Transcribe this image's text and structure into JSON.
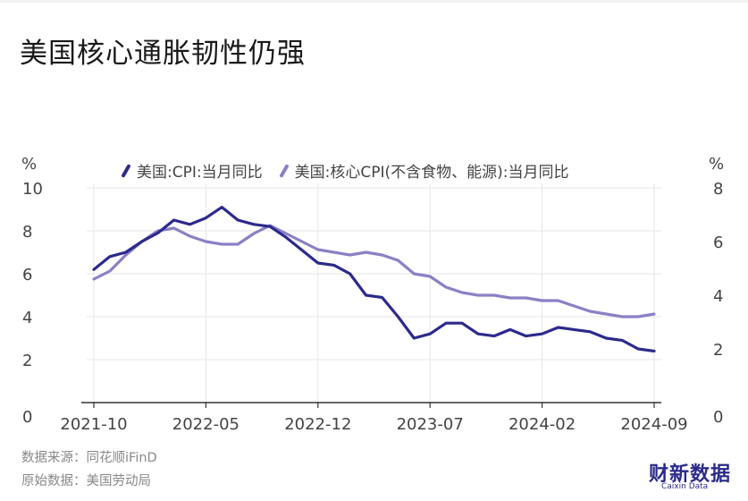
{
  "title": "美国核心通胀韧性仍强",
  "unit_left": "%",
  "unit_right": "%",
  "footer": {
    "source": "数据来源：同花顺iFinD",
    "original": "原始数据：美国劳动局"
  },
  "brand": {
    "name": "财新数据",
    "sub": "Caixin Data"
  },
  "colors": {
    "cpi": "#2d2a8c",
    "core": "#8a80c4",
    "grid": "#e6e6e6",
    "axis": "#333333"
  },
  "chart_data": {
    "type": "line",
    "title": "美国核心通胀韧性仍强",
    "x": [
      "2021-10",
      "2021-11",
      "2021-12",
      "2022-01",
      "2022-02",
      "2022-03",
      "2022-04",
      "2022-05",
      "2022-06",
      "2022-07",
      "2022-08",
      "2022-09",
      "2022-10",
      "2022-11",
      "2022-12",
      "2023-01",
      "2023-02",
      "2023-03",
      "2023-04",
      "2023-05",
      "2023-06",
      "2023-07",
      "2023-08",
      "2023-09",
      "2023-10",
      "2023-11",
      "2023-12",
      "2024-01",
      "2024-02",
      "2024-03",
      "2024-04",
      "2024-05",
      "2024-06",
      "2024-07",
      "2024-08",
      "2024-09"
    ],
    "x_tick_labels": [
      "2021-10",
      "2022-05",
      "2022-12",
      "2023-07",
      "2024-02",
      "2024-09"
    ],
    "series": [
      {
        "name": "美国:CPI:当月同比",
        "axis": "left",
        "color": "#2d2a8c",
        "values": [
          6.2,
          6.8,
          7.0,
          7.5,
          7.9,
          8.5,
          8.3,
          8.6,
          9.1,
          8.5,
          8.3,
          8.2,
          7.7,
          7.1,
          6.5,
          6.4,
          6.0,
          5.0,
          4.9,
          4.0,
          3.0,
          3.2,
          3.7,
          3.7,
          3.2,
          3.1,
          3.4,
          3.1,
          3.2,
          3.5,
          3.4,
          3.3,
          3.0,
          2.9,
          2.5,
          2.4
        ]
      },
      {
        "name": "美国:核心CPI(不含食物、能源):当月同比",
        "axis": "right",
        "color": "#8a80c4",
        "values": [
          4.6,
          4.9,
          5.5,
          6.0,
          6.4,
          6.5,
          6.2,
          6.0,
          5.9,
          5.9,
          6.3,
          6.6,
          6.3,
          6.0,
          5.7,
          5.6,
          5.5,
          5.6,
          5.5,
          5.3,
          4.8,
          4.7,
          4.3,
          4.1,
          4.0,
          4.0,
          3.9,
          3.9,
          3.8,
          3.8,
          3.6,
          3.4,
          3.3,
          3.2,
          3.2,
          3.3
        ]
      }
    ],
    "y_left": {
      "ticks": [
        0,
        2,
        4,
        6,
        8,
        10
      ],
      "ylim": [
        0,
        10
      ]
    },
    "y_right": {
      "ticks": [
        0,
        2,
        4,
        6,
        8
      ],
      "ylim": [
        0,
        8
      ]
    },
    "grid": true,
    "legend_position": "top"
  }
}
